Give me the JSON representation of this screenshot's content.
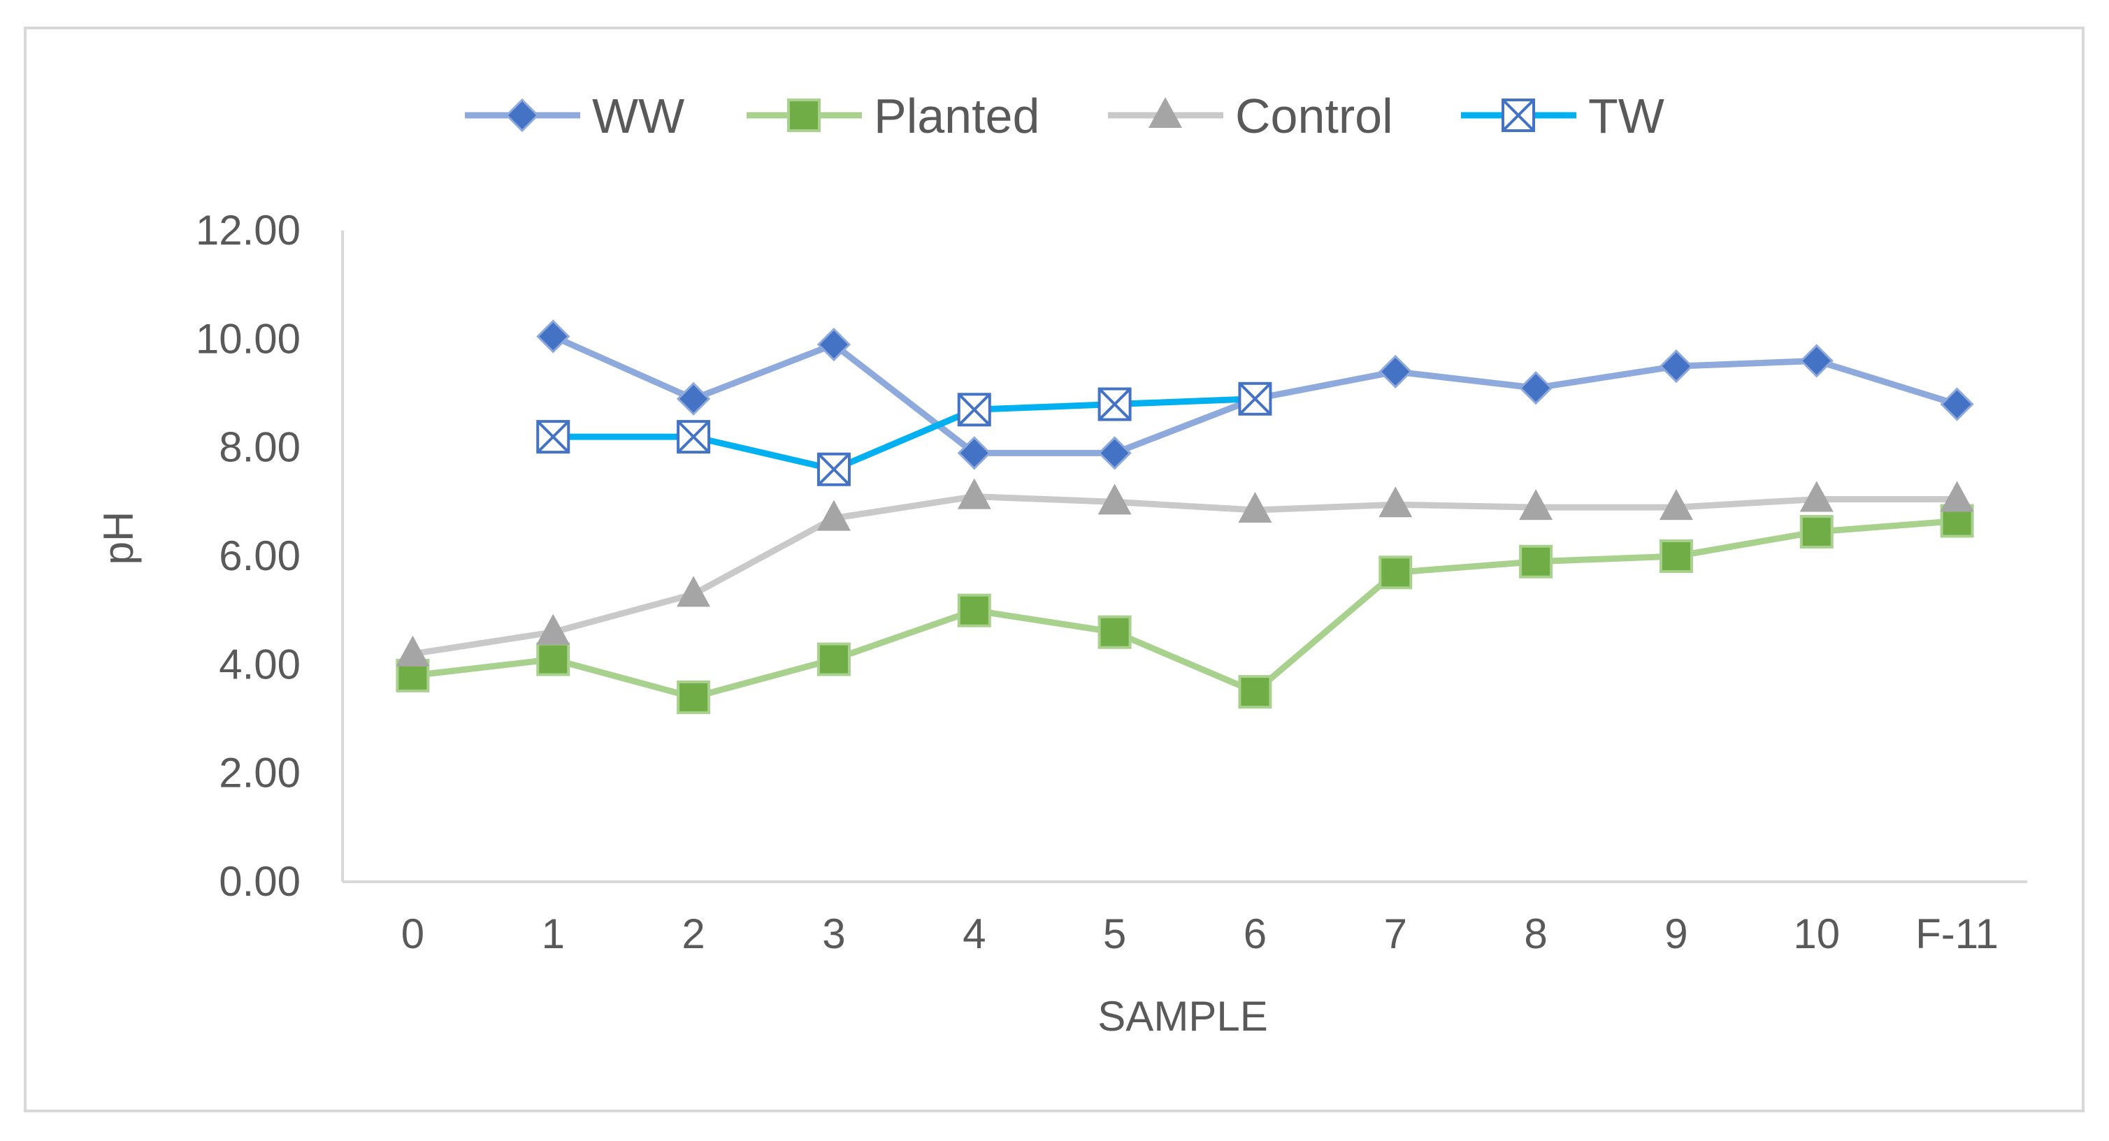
{
  "chart_data": {
    "type": "line",
    "title": "",
    "xlabel": "SAMPLE",
    "ylabel": "pH",
    "categories": [
      "0",
      "1",
      "2",
      "3",
      "4",
      "5",
      "6",
      "7",
      "8",
      "9",
      "10",
      "F-11"
    ],
    "ylim": [
      0,
      12
    ],
    "yticks": [
      "0.00",
      "2.00",
      "4.00",
      "6.00",
      "8.00",
      "10.00",
      "12.00"
    ],
    "grid": false,
    "legend_position": "top",
    "series": [
      {
        "name": "WW",
        "color": "#8ea9db",
        "marker": "diamond",
        "marker_color": "#4472c4",
        "values": [
          null,
          10.05,
          8.9,
          9.9,
          7.9,
          7.9,
          8.9,
          9.4,
          9.1,
          9.5,
          9.6,
          8.8
        ]
      },
      {
        "name": "Planted",
        "color": "#a9d18e",
        "marker": "square",
        "marker_color": "#70ad47",
        "values": [
          3.8,
          4.1,
          3.4,
          4.1,
          5.0,
          4.6,
          3.5,
          5.7,
          5.9,
          6.0,
          6.45,
          6.65
        ]
      },
      {
        "name": "Control",
        "color": "#c9c9c9",
        "marker": "triangle",
        "marker_color": "#a5a5a5",
        "values": [
          4.2,
          4.6,
          5.3,
          6.7,
          7.1,
          7.0,
          6.85,
          6.95,
          6.9,
          6.9,
          7.05,
          7.05
        ]
      },
      {
        "name": "TW",
        "color": "#00b0f0",
        "marker": "x-square",
        "marker_color": "#4472c4",
        "values": [
          null,
          8.2,
          8.2,
          7.6,
          8.7,
          8.8,
          8.9,
          null,
          null,
          null,
          null,
          null
        ]
      }
    ]
  }
}
